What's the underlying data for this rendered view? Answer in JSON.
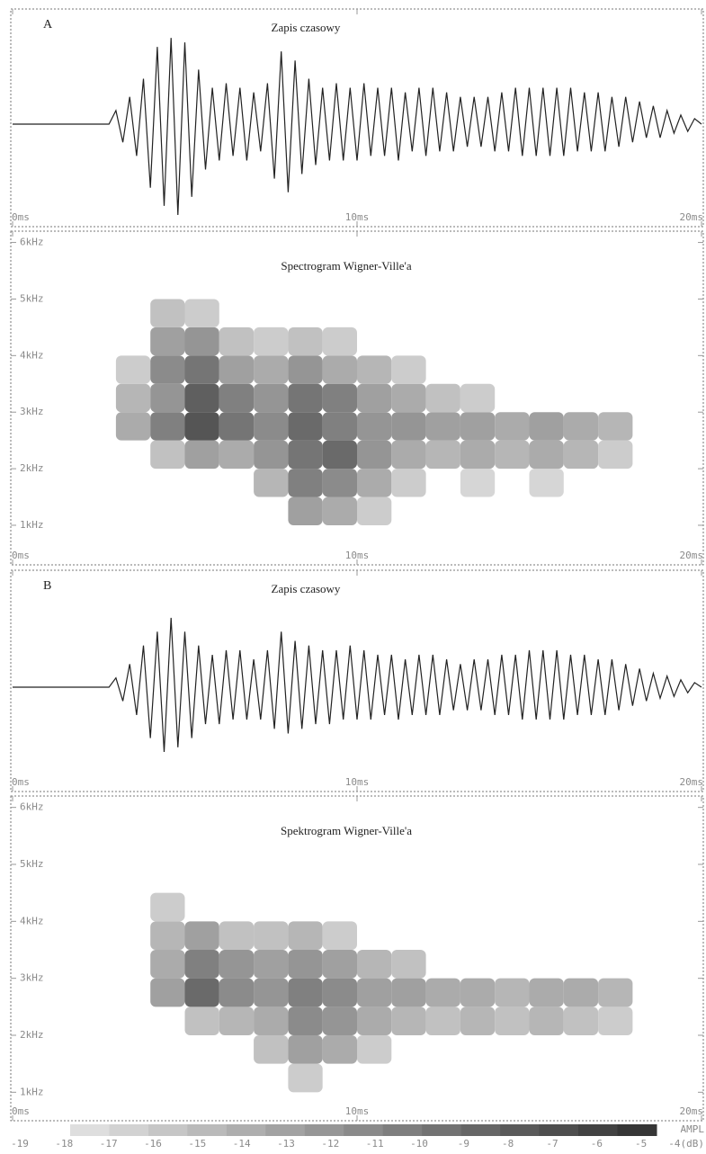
{
  "chart_data": [
    {
      "type": "line",
      "title": "Zapis czasowy",
      "annotation": "A",
      "color": "#222222",
      "x": [
        0,
        2.8,
        3.0,
        3.2,
        3.4,
        3.6,
        3.8,
        4.0,
        4.2,
        4.4,
        4.6,
        4.8,
        5.0,
        5.2,
        5.4,
        5.6,
        5.8,
        6.0,
        6.2,
        6.4,
        6.6,
        6.8,
        7.0,
        7.2,
        7.4,
        7.6,
        7.8,
        8.0,
        8.2,
        8.4,
        8.6,
        8.8,
        9.0,
        9.2,
        9.4,
        9.6,
        9.8,
        10.0,
        10.2,
        10.4,
        10.6,
        10.8,
        11.0,
        11.2,
        11.4,
        11.6,
        11.8,
        12.0,
        12.2,
        12.4,
        12.6,
        12.8,
        13.0,
        13.2,
        13.4,
        13.6,
        13.8,
        14.0,
        14.2,
        14.4,
        14.6,
        14.8,
        15.0,
        15.2,
        15.4,
        15.6,
        15.8,
        16.0,
        16.2,
        16.4,
        16.6,
        16.8,
        17.0,
        17.2,
        17.4,
        17.6,
        17.8,
        18.0,
        18.2,
        18.4,
        18.6,
        18.8,
        19.0,
        19.2,
        19.4,
        19.6,
        19.8,
        20.0
      ],
      "values": [
        0,
        0,
        0.15,
        -0.2,
        0.3,
        -0.35,
        0.5,
        -0.7,
        0.85,
        -0.9,
        0.95,
        -1.0,
        0.9,
        -0.8,
        0.6,
        -0.5,
        0.4,
        -0.4,
        0.45,
        -0.35,
        0.4,
        -0.4,
        0.35,
        -0.3,
        0.45,
        -0.6,
        0.8,
        -0.75,
        0.7,
        -0.55,
        0.5,
        -0.45,
        0.4,
        -0.4,
        0.45,
        -0.4,
        0.4,
        -0.4,
        0.45,
        -0.35,
        0.4,
        -0.35,
        0.4,
        -0.4,
        0.35,
        -0.3,
        0.4,
        -0.35,
        0.4,
        -0.3,
        0.35,
        -0.3,
        0.3,
        -0.25,
        0.3,
        -0.25,
        0.3,
        -0.3,
        0.35,
        -0.3,
        0.4,
        -0.35,
        0.4,
        -0.35,
        0.4,
        -0.35,
        0.4,
        -0.35,
        0.4,
        -0.3,
        0.35,
        -0.3,
        0.35,
        -0.3,
        0.3,
        -0.25,
        0.3,
        -0.2,
        0.25,
        -0.15,
        0.2,
        -0.15,
        0.15,
        -0.1,
        0.1,
        -0.08,
        0.06,
        0
      ],
      "xlim": [
        0,
        20
      ],
      "ylim": [
        -1.05,
        1.05
      ],
      "xticks": [
        {
          "value": 0,
          "label": "0ms"
        },
        {
          "value": 10,
          "label": "10ms"
        },
        {
          "value": 20,
          "label": "20ms"
        }
      ]
    },
    {
      "type": "heatmap",
      "title": "Spectrogram Wigner-Ville'a",
      "x": [
        0.5,
        1.5,
        2.5,
        3.5,
        4.5,
        5.5,
        6.5,
        7.5,
        8.5,
        9.5,
        10.5,
        11.5,
        12.5,
        13.5,
        14.5,
        15.5,
        16.5,
        17.5,
        18.5,
        19.5
      ],
      "y": [
        1.25,
        1.75,
        2.25,
        2.75,
        3.25,
        3.75,
        4.25,
        4.75
      ],
      "values": [
        [
          null,
          null,
          null,
          null,
          null,
          null,
          null,
          null,
          -13,
          -14,
          -17,
          null,
          null,
          null,
          null,
          null,
          null,
          null,
          null,
          null
        ],
        [
          null,
          null,
          null,
          null,
          null,
          null,
          null,
          -15,
          -10,
          -11,
          -14,
          -17,
          null,
          -18,
          null,
          -18,
          null,
          null,
          null,
          null
        ],
        [
          null,
          null,
          null,
          null,
          -16,
          -13,
          -14,
          -12,
          -9,
          -8,
          -12,
          -14,
          -15,
          -14,
          -15,
          -14,
          -15,
          -17,
          null,
          null
        ],
        [
          null,
          null,
          null,
          -14,
          -10,
          -6,
          -9,
          -11,
          -8,
          -10,
          -12,
          -12,
          -13,
          -13,
          -14,
          -13,
          -14,
          -15,
          null,
          null
        ],
        [
          null,
          null,
          null,
          -15,
          -12,
          -7,
          -10,
          -12,
          -9,
          -10,
          -13,
          -14,
          -16,
          -17,
          null,
          null,
          null,
          null,
          null,
          null
        ],
        [
          null,
          null,
          null,
          -17,
          -11,
          -9,
          -13,
          -14,
          -12,
          -14,
          -15,
          -17,
          null,
          null,
          null,
          null,
          null,
          null,
          null,
          null
        ],
        [
          null,
          null,
          null,
          null,
          -13,
          -12,
          -16,
          -17,
          -16,
          -17,
          null,
          null,
          null,
          null,
          null,
          null,
          null,
          null,
          null,
          null
        ],
        [
          null,
          null,
          null,
          null,
          -16,
          -17,
          null,
          null,
          null,
          null,
          null,
          null,
          null,
          null,
          null,
          null,
          null,
          null,
          null,
          null
        ]
      ],
      "xlim": [
        0,
        20
      ],
      "ylim": [
        0.3,
        6.2
      ],
      "xticks": [
        {
          "value": 0,
          "label": "0ms"
        },
        {
          "value": 10,
          "label": "10ms"
        },
        {
          "value": 20,
          "label": "20ms"
        }
      ],
      "yticks": [
        {
          "value": 1,
          "label": "1kHz"
        },
        {
          "value": 2,
          "label": "2kHz"
        },
        {
          "value": 3,
          "label": "3kHz"
        },
        {
          "value": 4,
          "label": "4kHz"
        },
        {
          "value": 5,
          "label": "5kHz"
        },
        {
          "value": 6,
          "label": "6kHz"
        }
      ]
    },
    {
      "type": "line",
      "title": "Zapis czasowy",
      "annotation": "B",
      "color": "#222222",
      "x": [
        0,
        2.8,
        3.0,
        3.2,
        3.4,
        3.6,
        3.8,
        4.0,
        4.2,
        4.4,
        4.6,
        4.8,
        5.0,
        5.2,
        5.4,
        5.6,
        5.8,
        6.0,
        6.2,
        6.4,
        6.6,
        6.8,
        7.0,
        7.2,
        7.4,
        7.6,
        7.8,
        8.0,
        8.2,
        8.4,
        8.6,
        8.8,
        9.0,
        9.2,
        9.4,
        9.6,
        9.8,
        10.0,
        10.2,
        10.4,
        10.6,
        10.8,
        11.0,
        11.2,
        11.4,
        11.6,
        11.8,
        12.0,
        12.2,
        12.4,
        12.6,
        12.8,
        13.0,
        13.2,
        13.4,
        13.6,
        13.8,
        14.0,
        14.2,
        14.4,
        14.6,
        14.8,
        15.0,
        15.2,
        15.4,
        15.6,
        15.8,
        16.0,
        16.2,
        16.4,
        16.6,
        16.8,
        17.0,
        17.2,
        17.4,
        17.6,
        17.8,
        18.0,
        18.2,
        18.4,
        18.6,
        18.8,
        19.0,
        19.2,
        19.4,
        19.6,
        19.8,
        20.0
      ],
      "values": [
        0,
        0,
        0.1,
        -0.15,
        0.25,
        -0.3,
        0.45,
        -0.55,
        0.6,
        -0.7,
        0.75,
        -0.65,
        0.6,
        -0.55,
        0.45,
        -0.4,
        0.35,
        -0.4,
        0.4,
        -0.35,
        0.4,
        -0.35,
        0.3,
        -0.35,
        0.4,
        -0.45,
        0.6,
        -0.5,
        0.5,
        -0.45,
        0.45,
        -0.4,
        0.4,
        -0.4,
        0.4,
        -0.35,
        0.45,
        -0.35,
        0.4,
        -0.35,
        0.35,
        -0.3,
        0.35,
        -0.35,
        0.3,
        -0.3,
        0.35,
        -0.3,
        0.35,
        -0.3,
        0.3,
        -0.25,
        0.25,
        -0.25,
        0.3,
        -0.25,
        0.3,
        -0.3,
        0.35,
        -0.3,
        0.35,
        -0.35,
        0.4,
        -0.35,
        0.4,
        -0.35,
        0.4,
        -0.35,
        0.35,
        -0.3,
        0.35,
        -0.3,
        0.3,
        -0.3,
        0.3,
        -0.25,
        0.25,
        -0.2,
        0.2,
        -0.15,
        0.15,
        -0.12,
        0.12,
        -0.1,
        0.08,
        -0.06,
        0.05,
        0
      ],
      "xlim": [
        0,
        20
      ],
      "ylim": [
        -1.05,
        1.05
      ],
      "xticks": [
        {
          "value": 0,
          "label": "0ms"
        },
        {
          "value": 10,
          "label": "10ms"
        },
        {
          "value": 20,
          "label": "20ms"
        }
      ]
    },
    {
      "type": "heatmap",
      "title": "Spektrogram Wigner-Ville'a",
      "x": [
        0.5,
        1.5,
        2.5,
        3.5,
        4.5,
        5.5,
        6.5,
        7.5,
        8.5,
        9.5,
        10.5,
        11.5,
        12.5,
        13.5,
        14.5,
        15.5,
        16.5,
        17.5,
        18.5,
        19.5
      ],
      "y": [
        1.25,
        1.75,
        2.25,
        2.75,
        3.25,
        3.75,
        4.25,
        4.75
      ],
      "values": [
        [
          null,
          null,
          null,
          null,
          null,
          null,
          null,
          null,
          -17,
          null,
          null,
          null,
          null,
          null,
          null,
          null,
          null,
          null,
          null,
          null
        ],
        [
          null,
          null,
          null,
          null,
          null,
          null,
          null,
          -16,
          -13,
          -14,
          -17,
          null,
          null,
          null,
          null,
          null,
          null,
          null,
          null,
          null
        ],
        [
          null,
          null,
          null,
          null,
          null,
          -16,
          -15,
          -14,
          -11,
          -12,
          -14,
          -15,
          -16,
          -15,
          -16,
          -15,
          -16,
          -17,
          null,
          null
        ],
        [
          null,
          null,
          null,
          null,
          -13,
          -8,
          -11,
          -12,
          -10,
          -11,
          -13,
          -13,
          -14,
          -14,
          -15,
          -14,
          -14,
          -15,
          null,
          null
        ],
        [
          null,
          null,
          null,
          null,
          -14,
          -10,
          -12,
          -13,
          -12,
          -13,
          -15,
          -16,
          null,
          null,
          null,
          null,
          null,
          null,
          null,
          null
        ],
        [
          null,
          null,
          null,
          null,
          -15,
          -13,
          -16,
          -16,
          -15,
          -17,
          null,
          null,
          null,
          null,
          null,
          null,
          null,
          null,
          null,
          null
        ],
        [
          null,
          null,
          null,
          null,
          -17,
          null,
          null,
          null,
          null,
          null,
          null,
          null,
          null,
          null,
          null,
          null,
          null,
          null,
          null,
          null
        ],
        [
          null,
          null,
          null,
          null,
          null,
          null,
          null,
          null,
          null,
          null,
          null,
          null,
          null,
          null,
          null,
          null,
          null,
          null,
          null,
          null
        ]
      ],
      "xlim": [
        0,
        20
      ],
      "ylim": [
        0.5,
        6.2
      ],
      "xticks": [
        {
          "value": 0,
          "label": "0ms"
        },
        {
          "value": 10,
          "label": "10ms"
        },
        {
          "value": 20,
          "label": "20ms"
        }
      ],
      "yticks": [
        {
          "value": 1,
          "label": "1kHz"
        },
        {
          "value": 2,
          "label": "2kHz"
        },
        {
          "value": 3,
          "label": "3kHz"
        },
        {
          "value": 4,
          "label": "4kHz"
        },
        {
          "value": 5,
          "label": "5kHz"
        },
        {
          "value": 6,
          "label": "6kHz"
        }
      ]
    },
    {
      "type": "colorbar",
      "label": "AMPL",
      "range": [
        -19,
        -4
      ],
      "ticks": [
        -19,
        -18,
        -17,
        -16,
        -15,
        -14,
        -13,
        -12,
        -11,
        -10,
        -9,
        -8,
        -7,
        -6,
        -5,
        {
          "value": -4,
          "label": "-4(dB)"
        }
      ]
    }
  ]
}
